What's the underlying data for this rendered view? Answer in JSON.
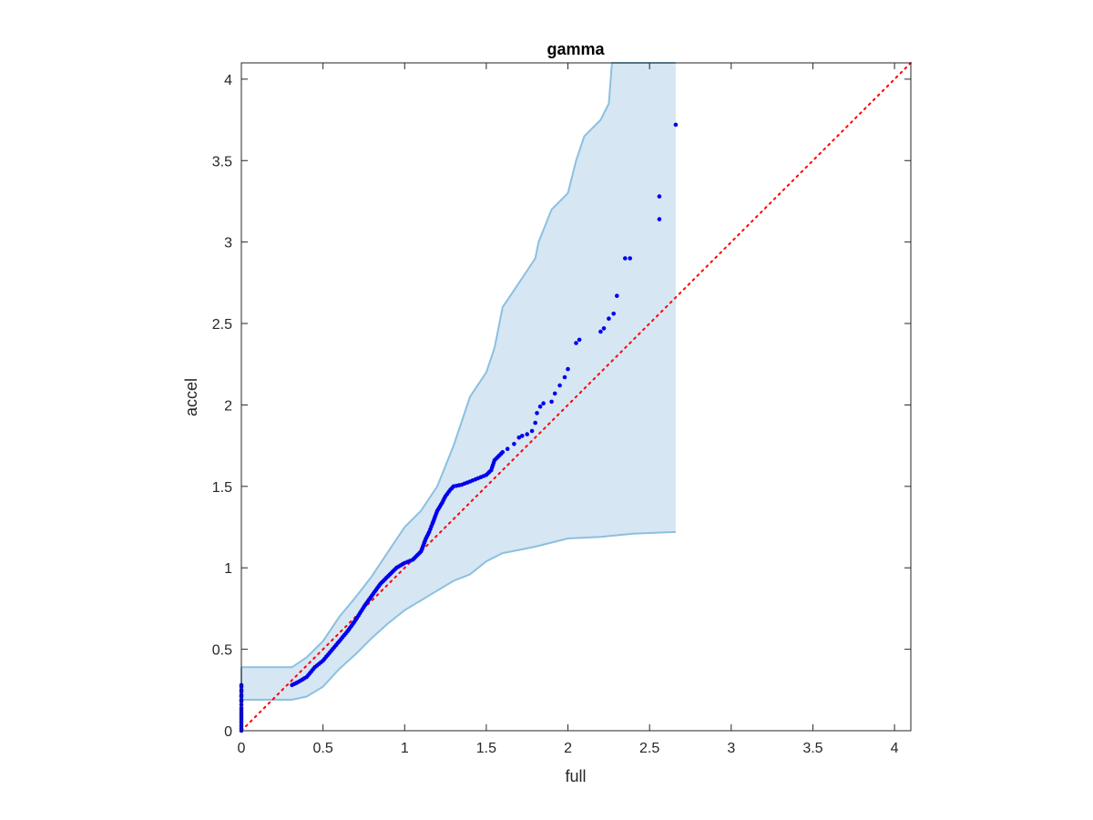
{
  "chart_data": {
    "type": "scatter",
    "title": "gamma",
    "xlabel": "full",
    "ylabel": "accel",
    "xlim": [
      0,
      4.1
    ],
    "ylim": [
      0,
      4.1
    ],
    "grid": false,
    "x_ticks": [
      0,
      0.5,
      1,
      1.5,
      2,
      2.5,
      3,
      3.5,
      4
    ],
    "y_ticks": [
      0,
      0.5,
      1,
      1.5,
      2,
      2.5,
      3,
      3.5,
      4
    ],
    "x_tick_labels": [
      "0",
      "0.5",
      "1",
      "1.5",
      "2",
      "2.5",
      "3",
      "3.5",
      "4"
    ],
    "y_tick_labels": [
      "0",
      "0.5",
      "1",
      "1.5",
      "2",
      "2.5",
      "3",
      "3.5",
      "4"
    ],
    "colors": {
      "points": "#0000ee",
      "reference_line": "#ff0000",
      "band_fill": "#d6e6f3",
      "band_edge": "#8cc0e0",
      "axes": "#262626"
    },
    "reference_line": {
      "style": "dotted",
      "x": [
        0,
        4.1
      ],
      "y": [
        0,
        4.1
      ]
    },
    "confidence_band": {
      "upper": [
        [
          0,
          0.39
        ],
        [
          0.31,
          0.39
        ],
        [
          0.4,
          0.45
        ],
        [
          0.5,
          0.55
        ],
        [
          0.6,
          0.7
        ],
        [
          0.7,
          0.82
        ],
        [
          0.8,
          0.95
        ],
        [
          0.9,
          1.1
        ],
        [
          1.0,
          1.25
        ],
        [
          1.1,
          1.35
        ],
        [
          1.2,
          1.5
        ],
        [
          1.3,
          1.75
        ],
        [
          1.4,
          2.05
        ],
        [
          1.5,
          2.2
        ],
        [
          1.55,
          2.35
        ],
        [
          1.57,
          2.45
        ],
        [
          1.6,
          2.6
        ],
        [
          1.7,
          2.75
        ],
        [
          1.8,
          2.9
        ],
        [
          1.82,
          3.0
        ],
        [
          1.9,
          3.2
        ],
        [
          2.0,
          3.3
        ],
        [
          2.05,
          3.5
        ],
        [
          2.1,
          3.65
        ],
        [
          2.2,
          3.75
        ],
        [
          2.25,
          3.85
        ],
        [
          2.27,
          4.1
        ],
        [
          2.66,
          4.1
        ]
      ],
      "lower": [
        [
          0,
          0.19
        ],
        [
          0.31,
          0.19
        ],
        [
          0.4,
          0.21
        ],
        [
          0.5,
          0.27
        ],
        [
          0.6,
          0.38
        ],
        [
          0.7,
          0.47
        ],
        [
          0.8,
          0.57
        ],
        [
          0.9,
          0.66
        ],
        [
          1.0,
          0.74
        ],
        [
          1.1,
          0.8
        ],
        [
          1.2,
          0.86
        ],
        [
          1.3,
          0.92
        ],
        [
          1.4,
          0.96
        ],
        [
          1.5,
          1.04
        ],
        [
          1.6,
          1.09
        ],
        [
          1.7,
          1.11
        ],
        [
          1.8,
          1.13
        ],
        [
          2.0,
          1.18
        ],
        [
          2.2,
          1.19
        ],
        [
          2.4,
          1.21
        ],
        [
          2.66,
          1.22
        ]
      ]
    },
    "series": [
      {
        "x": [
          0,
          0,
          0,
          0,
          0,
          0,
          0,
          0,
          0,
          0,
          0,
          0.31,
          0.35,
          0.4,
          0.45,
          0.5,
          0.55,
          0.6,
          0.65,
          0.7,
          0.75,
          0.8,
          0.85,
          0.9,
          0.95,
          1.0,
          1.05,
          1.1,
          1.13,
          1.15,
          1.17,
          1.2,
          1.23,
          1.25,
          1.28,
          1.3,
          1.35,
          1.4,
          1.45,
          1.5,
          1.53,
          1.55,
          1.57,
          1.6,
          1.63,
          1.67,
          1.7,
          1.72,
          1.75,
          1.78,
          1.8,
          1.81,
          1.83,
          1.85,
          1.9,
          1.92,
          1.95,
          1.98,
          2.0,
          2.05,
          2.07,
          2.2,
          2.22,
          2.25,
          2.28,
          2.3,
          2.35,
          2.38,
          2.56,
          2.56,
          2.66
        ],
        "y": [
          0,
          0.14,
          0.16,
          0.18,
          0.19,
          0.21,
          0.22,
          0.24,
          0.25,
          0.27,
          0.28,
          0.28,
          0.3,
          0.33,
          0.39,
          0.43,
          0.49,
          0.55,
          0.61,
          0.68,
          0.76,
          0.83,
          0.9,
          0.95,
          1.0,
          1.03,
          1.05,
          1.1,
          1.18,
          1.22,
          1.27,
          1.35,
          1.4,
          1.44,
          1.48,
          1.5,
          1.51,
          1.53,
          1.55,
          1.57,
          1.6,
          1.66,
          1.68,
          1.71,
          1.73,
          1.76,
          1.8,
          1.81,
          1.82,
          1.84,
          1.89,
          1.95,
          1.99,
          2.01,
          2.02,
          2.07,
          2.12,
          2.17,
          2.22,
          2.38,
          2.4,
          2.45,
          2.47,
          2.53,
          2.56,
          2.67,
          2.9,
          2.9,
          3.14,
          3.28,
          3.72
        ]
      }
    ]
  }
}
